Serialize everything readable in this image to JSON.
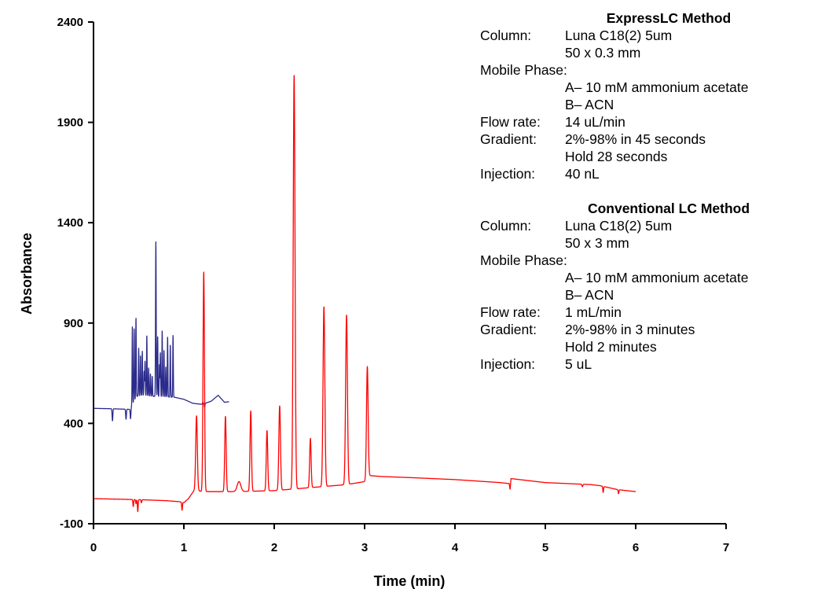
{
  "chart_data": {
    "type": "line",
    "xlabel": "Time (min)",
    "ylabel": "Absorbance",
    "xlim": [
      0,
      7
    ],
    "ylim": [
      -100,
      2400
    ],
    "xticks": [
      0,
      1,
      2,
      3,
      4,
      5,
      6,
      7
    ],
    "yticks": [
      -100,
      400,
      900,
      1400,
      1900,
      2400
    ],
    "grid": false,
    "legend": "none",
    "series": [
      {
        "color": "#2b2b8c",
        "baseline": [
          [
            0,
            475
          ],
          [
            0.2,
            473
          ],
          [
            0.4,
            470
          ],
          [
            0.48,
            535
          ],
          [
            0.55,
            540
          ],
          [
            0.65,
            535
          ],
          [
            0.9,
            530
          ],
          [
            1.0,
            520
          ],
          [
            1.1,
            500
          ],
          [
            1.2,
            495
          ],
          [
            1.3,
            510
          ],
          [
            1.38,
            540
          ],
          [
            1.45,
            505
          ],
          [
            1.5,
            508
          ]
        ],
        "peaks": [
          {
            "x": 0.21,
            "height": -60,
            "width": 0.004
          },
          {
            "x": 0.36,
            "height": -50,
            "width": 0.004
          },
          {
            "x": 0.41,
            "height": -55,
            "width": 0.004
          },
          {
            "x": 0.43,
            "height": 390,
            "width": 0.003
          },
          {
            "x": 0.45,
            "height": 360,
            "width": 0.003
          },
          {
            "x": 0.47,
            "height": 400,
            "width": 0.003
          },
          {
            "x": 0.5,
            "height": 240,
            "width": 0.003
          },
          {
            "x": 0.52,
            "height": 200,
            "width": 0.003
          },
          {
            "x": 0.54,
            "height": 220,
            "width": 0.003
          },
          {
            "x": 0.56,
            "height": 120,
            "width": 0.003
          },
          {
            "x": 0.57,
            "height": 170,
            "width": 0.003
          },
          {
            "x": 0.59,
            "height": 300,
            "width": 0.003
          },
          {
            "x": 0.61,
            "height": 140,
            "width": 0.003
          },
          {
            "x": 0.63,
            "height": 110,
            "width": 0.003
          },
          {
            "x": 0.65,
            "height": 100,
            "width": 0.003
          },
          {
            "x": 0.69,
            "height": 770,
            "width": 0.0035
          },
          {
            "x": 0.71,
            "height": 300,
            "width": 0.003
          },
          {
            "x": 0.73,
            "height": 160,
            "width": 0.003
          },
          {
            "x": 0.74,
            "height": 220,
            "width": 0.003
          },
          {
            "x": 0.76,
            "height": 330,
            "width": 0.003
          },
          {
            "x": 0.78,
            "height": 230,
            "width": 0.003
          },
          {
            "x": 0.8,
            "height": 150,
            "width": 0.003
          },
          {
            "x": 0.82,
            "height": 300,
            "width": 0.003
          },
          {
            "x": 0.85,
            "height": 260,
            "width": 0.003
          },
          {
            "x": 0.88,
            "height": 310,
            "width": 0.003
          },
          {
            "x": 1.21,
            "height": 10,
            "width": 0.003
          },
          {
            "x": 1.23,
            "height": -20,
            "width": 0.003
          }
        ]
      },
      {
        "color": "#ff0000",
        "baseline": [
          [
            0,
            25
          ],
          [
            0.5,
            20
          ],
          [
            0.8,
            15
          ],
          [
            0.95,
            10
          ],
          [
            1.0,
            5
          ],
          [
            1.05,
            25
          ],
          [
            1.12,
            70
          ],
          [
            1.2,
            60
          ],
          [
            1.3,
            60
          ],
          [
            1.6,
            60
          ],
          [
            2.0,
            65
          ],
          [
            2.4,
            80
          ],
          [
            2.8,
            95
          ],
          [
            3.0,
            110
          ],
          [
            3.05,
            140
          ],
          [
            3.2,
            135
          ],
          [
            3.5,
            130
          ],
          [
            4.0,
            120
          ],
          [
            4.5,
            105
          ],
          [
            4.6,
            100
          ],
          [
            4.61,
            70
          ],
          [
            4.62,
            125
          ],
          [
            5.0,
            105
          ],
          [
            5.5,
            95
          ],
          [
            5.6,
            90
          ],
          [
            5.8,
            70
          ],
          [
            6.0,
            60
          ]
        ],
        "peaks": [
          {
            "x": 0.44,
            "height": -35,
            "width": 0.004
          },
          {
            "x": 0.47,
            "height": -20,
            "width": 0.004
          },
          {
            "x": 0.49,
            "height": -60,
            "width": 0.004
          },
          {
            "x": 0.53,
            "height": -15,
            "width": 0.004
          },
          {
            "x": 0.98,
            "height": -40,
            "width": 0.004
          },
          {
            "x": 1.14,
            "height": 370,
            "width": 0.009
          },
          {
            "x": 1.22,
            "height": 1095,
            "width": 0.008
          },
          {
            "x": 1.46,
            "height": 375,
            "width": 0.008
          },
          {
            "x": 1.61,
            "height": 50,
            "width": 0.02
          },
          {
            "x": 1.74,
            "height": 400,
            "width": 0.008
          },
          {
            "x": 1.92,
            "height": 300,
            "width": 0.008
          },
          {
            "x": 2.06,
            "height": 420,
            "width": 0.009
          },
          {
            "x": 2.22,
            "height": 2060,
            "width": 0.01
          },
          {
            "x": 2.4,
            "height": 245,
            "width": 0.008
          },
          {
            "x": 2.55,
            "height": 895,
            "width": 0.01
          },
          {
            "x": 2.8,
            "height": 845,
            "width": 0.01
          },
          {
            "x": 3.03,
            "height": 555,
            "width": 0.009
          },
          {
            "x": 5.41,
            "height": -12,
            "width": 0.005
          },
          {
            "x": 5.64,
            "height": -30,
            "width": 0.004
          },
          {
            "x": 5.81,
            "height": -20,
            "width": 0.004
          }
        ]
      }
    ]
  },
  "method_notes": {
    "express": {
      "title": "ExpressLC Method",
      "column_label": "Column:",
      "column_value": "Luna C18(2) 5um",
      "column_dims": "50 x 0.3 mm",
      "mobile_phase_label": "Mobile Phase:",
      "mobile_phase_a": "A– 10 mM ammonium acetate",
      "mobile_phase_b": "B– ACN",
      "flow_label": "Flow rate:",
      "flow_value": "14 uL/min",
      "gradient_label": "Gradient:",
      "gradient_value": "2%-98% in 45 seconds",
      "hold_value": "Hold 28 seconds",
      "injection_label": "Injection:",
      "injection_value": "40 nL"
    },
    "conventional": {
      "title": "Conventional LC Method",
      "column_label": "Column:",
      "column_value": "Luna C18(2) 5um",
      "column_dims": "50 x 3 mm",
      "mobile_phase_label": "Mobile Phase:",
      "mobile_phase_a": "A– 10 mM ammonium acetate",
      "mobile_phase_b": "B– ACN",
      "flow_label": "Flow rate:",
      "flow_value": "1 mL/min",
      "gradient_label": "Gradient:",
      "gradient_value": "2%-98% in 3 minutes",
      "hold_value": "Hold 2 minutes",
      "injection_label": "Injection:",
      "injection_value": "5 uL"
    }
  }
}
